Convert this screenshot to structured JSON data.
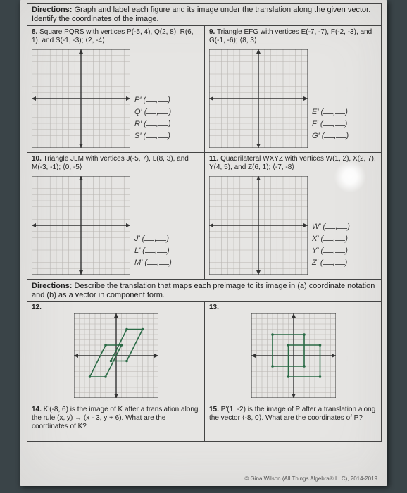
{
  "directions1": "Directions: Graph and label each figure and its image under the translation along the given vector. Identify the coordinates of the image.",
  "p8": {
    "num": "8.",
    "text": " Square PQRS with vertices P(-5, 4), Q(2, 8), R(6, 1), and S(-1, -3); ⟨2, -4⟩",
    "labels": [
      "P'",
      "Q'",
      "R'",
      "S'"
    ]
  },
  "p9": {
    "num": "9.",
    "text": " Triangle EFG with vertices E(-7, -7), F(-2, -3), and G(-1, -6); ⟨8, 3⟩",
    "labels": [
      "E'",
      "F'",
      "G'"
    ]
  },
  "p10": {
    "num": "10.",
    "text": " Triangle JLM with vertices J(-5, 7), L(8, 3), and M(-3, -1); ⟨0, -5⟩",
    "labels": [
      "J'",
      "L'",
      "M'"
    ]
  },
  "p11": {
    "num": "11.",
    "text": " Quadrilateral WXYZ with vertices W(1, 2), X(2, 7), Y(4, 5), and Z(6, 1); ⟨-7, -8⟩",
    "labels": [
      "W'",
      "X'",
      "Y'",
      "Z'"
    ]
  },
  "directions2": "Directions: Describe the translation that maps each preimage to its image in (a) coordinate notation and (b) as a vector in component form.",
  "p12": {
    "num": "12."
  },
  "p13": {
    "num": "13."
  },
  "p14": {
    "num": "14.",
    "text": " K'(-8, 6) is the image of K after a translation along the rule (x, y) → (x - 3, y + 6). What are the coordinates of K?"
  },
  "p15": {
    "num": "15.",
    "text": " P'(1, -2) is the image of P after a translation along the vector ⟨-8, 0⟩. What are the coordinates of P?"
  },
  "footer": "© Gina Wilson (All Things Algebra® LLC), 2014-2019",
  "grid": {
    "ticks": 8,
    "cell": 8,
    "line_color": "#b9b6b2",
    "axis_color": "#333"
  },
  "shape12": {
    "color": "#2a6a45",
    "pre": [
      [
        -5,
        -4
      ],
      [
        -2,
        -4
      ],
      [
        1,
        2
      ],
      [
        -2,
        2
      ]
    ],
    "post": [
      [
        -1,
        -1
      ],
      [
        2,
        -1
      ],
      [
        5,
        5
      ],
      [
        2,
        5
      ]
    ]
  },
  "shape13": {
    "color": "#2a6a45",
    "pre": [
      [
        -1,
        -4
      ],
      [
        5,
        -4
      ],
      [
        5,
        2
      ],
      [
        -1,
        2
      ]
    ],
    "post": [
      [
        -4,
        -2
      ],
      [
        2,
        -2
      ],
      [
        2,
        4
      ],
      [
        -4,
        4
      ]
    ]
  }
}
